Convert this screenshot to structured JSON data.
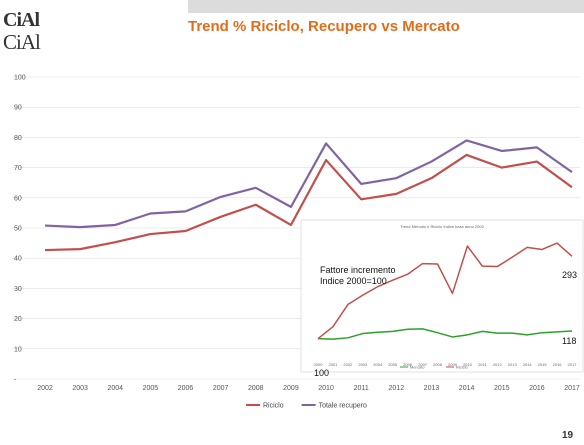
{
  "slide": {
    "title": "Trend % Riciclo, Recupero vs Mercato",
    "logo_top": "CiAl",
    "logo_bottom": "CiAl",
    "page_number": "19"
  },
  "colors": {
    "title": "#e36c1a",
    "riciclo": "#c0504d",
    "totale_recupero": "#8064a2",
    "mercato": "#2ca02c",
    "grid": "#dddddd"
  },
  "chart_data": [
    {
      "type": "line",
      "title": "",
      "xlabel": "",
      "ylabel": "",
      "categories": [
        "2002",
        "2003",
        "2004",
        "2005",
        "2006",
        "2007",
        "2008",
        "2009",
        "2010",
        "2011",
        "2012",
        "2013",
        "2014",
        "2015",
        "2016",
        "2017"
      ],
      "ylim": [
        0,
        100
      ],
      "yticks": [
        0,
        10,
        20,
        30,
        40,
        50,
        60,
        70,
        80,
        90,
        100
      ],
      "grid": true,
      "legend_position": "bottom",
      "series": [
        {
          "name": "Riciclo",
          "color": "#c0504d",
          "values": [
            42.7,
            43.0,
            45.3,
            48.0,
            49.0,
            53.7,
            57.7,
            51.0,
            72.5,
            59.5,
            61.3,
            66.5,
            74.2,
            70.0,
            72.0,
            63.5
          ]
        },
        {
          "name": "Totale recupero",
          "color": "#8064a2",
          "values": [
            50.8,
            50.3,
            51.0,
            54.8,
            55.5,
            60.3,
            63.3,
            57.0,
            78.0,
            64.6,
            66.5,
            72.0,
            79.0,
            75.5,
            76.7,
            68.5
          ]
        }
      ]
    },
    {
      "type": "line",
      "title": "Trend Mercato e Riciclo Indice base anno 2000",
      "categories": [
        "2000",
        "2001",
        "2002",
        "2003",
        "2004",
        "2005",
        "2006",
        "2007",
        "2008",
        "2009",
        "2010",
        "2011",
        "2012",
        "2013",
        "2014",
        "2015",
        "2016",
        "2017"
      ],
      "ylim": [
        50,
        350
      ],
      "grid": false,
      "legend_position": "bottom",
      "series": [
        {
          "name": "Mercato",
          "color": "#2ca02c",
          "values": [
            100,
            99,
            102,
            112,
            115,
            117,
            122,
            123,
            114,
            104,
            109,
            117,
            113,
            113,
            109,
            114,
            116,
            118
          ]
        },
        {
          "name": "Riciclo",
          "color": "#c0504d",
          "values": [
            100,
            128,
            180,
            202,
            222,
            237,
            251,
            276,
            275,
            206,
            317,
            270,
            269,
            291,
            314,
            309,
            324,
            293
          ]
        }
      ],
      "annotations": {
        "label": "Fattore incremento\nIndice 2000=100",
        "start_value": "100",
        "riciclo_end": "293",
        "mercato_end": "118"
      }
    }
  ]
}
